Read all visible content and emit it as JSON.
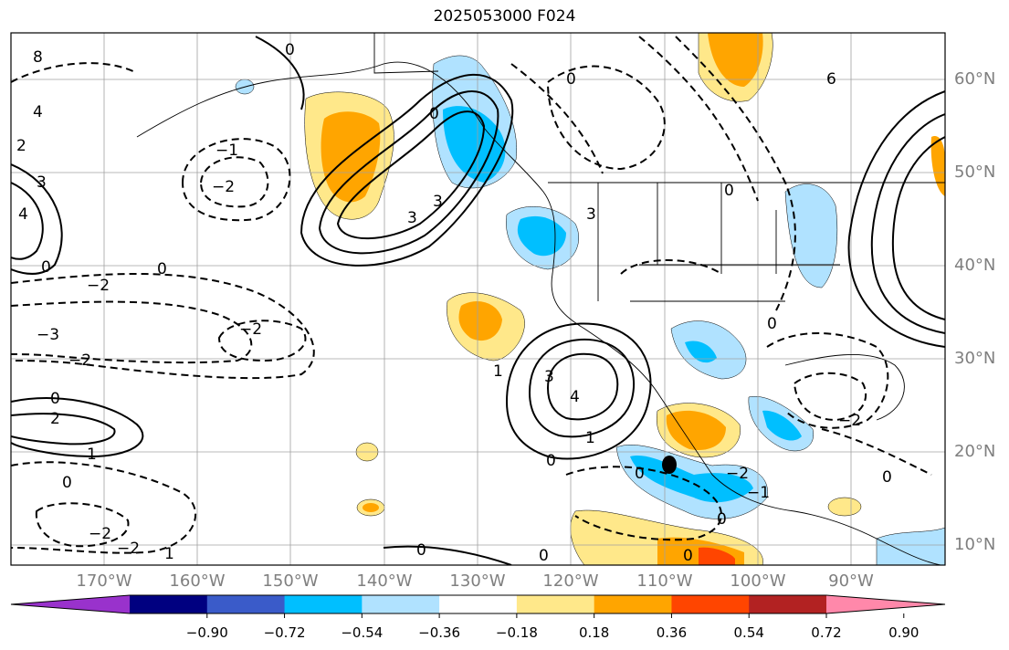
{
  "title": "2025053000 F024",
  "lat_labels": [
    "60°N",
    "50°N",
    "40°N",
    "30°N",
    "20°N",
    "10°N"
  ],
  "lon_labels": [
    "170°W",
    "160°W",
    "150°W",
    "140°W",
    "130°W",
    "120°W",
    "110°W",
    "100°W",
    "90°W"
  ],
  "colorbar": {
    "ticks": [
      "−0.90",
      "−0.72",
      "−0.54",
      "−0.36",
      "−0.18",
      "0.18",
      "0.36",
      "0.54",
      "0.72",
      "0.90"
    ],
    "colors": [
      "#9932cc",
      "#000080",
      "#3a5bc9",
      "#00bfff",
      "#b0e2ff",
      "#ffffff",
      "#ffe88a",
      "#ffa500",
      "#ff4500",
      "#b22222",
      "#ff88aa"
    ]
  },
  "contour_labels": [
    "0",
    "1",
    "2",
    "3",
    "4",
    "6",
    "8",
    "−1",
    "−2",
    "−3"
  ]
}
